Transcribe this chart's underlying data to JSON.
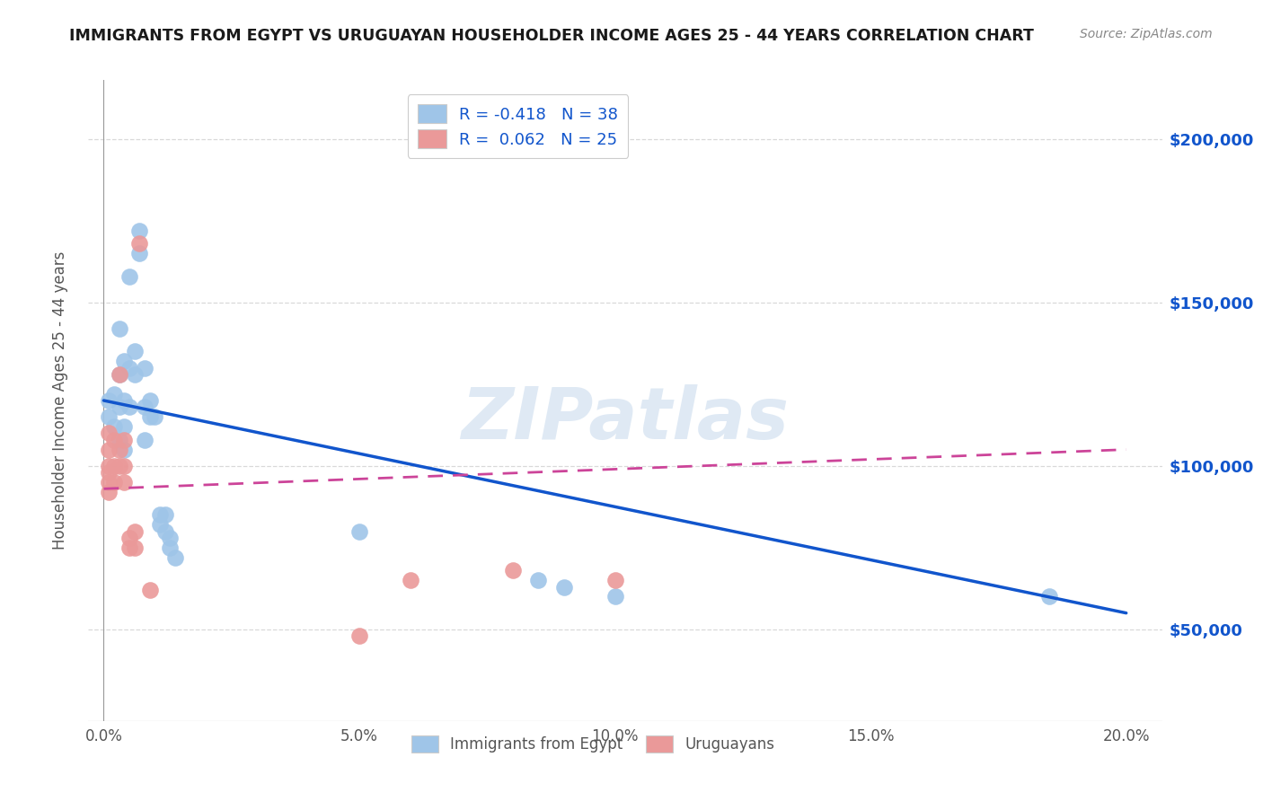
{
  "title": "IMMIGRANTS FROM EGYPT VS URUGUAYAN HOUSEHOLDER INCOME AGES 25 - 44 YEARS CORRELATION CHART",
  "source": "Source: ZipAtlas.com",
  "ylabel": "Householder Income Ages 25 - 44 years",
  "xlabel_ticks": [
    "0.0%",
    "5.0%",
    "10.0%",
    "15.0%",
    "20.0%"
  ],
  "xlabel_vals": [
    0.0,
    0.05,
    0.1,
    0.15,
    0.2
  ],
  "ytick_labels": [
    "$50,000",
    "$100,000",
    "$150,000",
    "$200,000"
  ],
  "ytick_vals": [
    50000,
    100000,
    150000,
    200000
  ],
  "ylim": [
    22000,
    218000
  ],
  "xlim": [
    -0.003,
    0.207
  ],
  "blue_color": "#9fc5e8",
  "pink_color": "#ea9999",
  "blue_line_color": "#1155cc",
  "pink_line_color": "#cc4499",
  "blue_scatter": [
    [
      0.001,
      120000
    ],
    [
      0.001,
      115000
    ],
    [
      0.002,
      122000
    ],
    [
      0.002,
      112000
    ],
    [
      0.003,
      142000
    ],
    [
      0.003,
      128000
    ],
    [
      0.003,
      118000
    ],
    [
      0.003,
      108000
    ],
    [
      0.004,
      132000
    ],
    [
      0.004,
      120000
    ],
    [
      0.004,
      112000
    ],
    [
      0.004,
      105000
    ],
    [
      0.005,
      158000
    ],
    [
      0.005,
      130000
    ],
    [
      0.005,
      118000
    ],
    [
      0.006,
      135000
    ],
    [
      0.006,
      128000
    ],
    [
      0.007,
      172000
    ],
    [
      0.007,
      165000
    ],
    [
      0.008,
      130000
    ],
    [
      0.008,
      118000
    ],
    [
      0.008,
      108000
    ],
    [
      0.009,
      120000
    ],
    [
      0.009,
      115000
    ],
    [
      0.01,
      115000
    ],
    [
      0.011,
      85000
    ],
    [
      0.011,
      82000
    ],
    [
      0.012,
      85000
    ],
    [
      0.012,
      80000
    ],
    [
      0.013,
      78000
    ],
    [
      0.013,
      75000
    ],
    [
      0.014,
      72000
    ],
    [
      0.05,
      80000
    ],
    [
      0.085,
      65000
    ],
    [
      0.09,
      63000
    ],
    [
      0.1,
      60000
    ],
    [
      0.185,
      60000
    ]
  ],
  "pink_scatter": [
    [
      0.001,
      110000
    ],
    [
      0.001,
      105000
    ],
    [
      0.001,
      100000
    ],
    [
      0.001,
      98000
    ],
    [
      0.001,
      95000
    ],
    [
      0.001,
      92000
    ],
    [
      0.002,
      108000
    ],
    [
      0.002,
      100000
    ],
    [
      0.002,
      95000
    ],
    [
      0.003,
      128000
    ],
    [
      0.003,
      105000
    ],
    [
      0.003,
      100000
    ],
    [
      0.004,
      108000
    ],
    [
      0.004,
      100000
    ],
    [
      0.004,
      95000
    ],
    [
      0.005,
      78000
    ],
    [
      0.005,
      75000
    ],
    [
      0.006,
      80000
    ],
    [
      0.006,
      75000
    ],
    [
      0.007,
      168000
    ],
    [
      0.009,
      62000
    ],
    [
      0.05,
      48000
    ],
    [
      0.06,
      65000
    ],
    [
      0.08,
      68000
    ],
    [
      0.1,
      65000
    ]
  ],
  "blue_trendline_x": [
    0.0,
    0.2
  ],
  "blue_trendline_y": [
    120000,
    55000
  ],
  "pink_trendline_x": [
    0.0,
    0.2
  ],
  "pink_trendline_y": [
    93000,
    105000
  ],
  "watermark": "ZIPatlas",
  "background_color": "#ffffff",
  "grid_color": "#d9d9d9"
}
